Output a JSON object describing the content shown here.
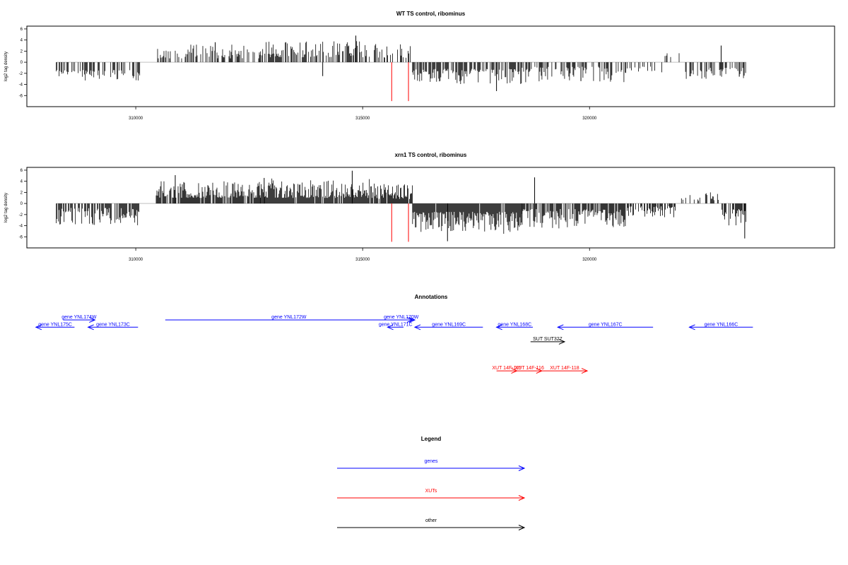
{
  "chart_data": [
    {
      "type": "bar",
      "title": "WT TS control, ribominus",
      "ylabel": "log2 tag density",
      "xlabel": "",
      "xlim": [
        307600,
        325400
      ],
      "ylim": [
        -8,
        6.5
      ],
      "xticks": [
        310000,
        315000,
        320000
      ],
      "yticks": [
        6,
        4,
        2,
        0,
        -2,
        -4,
        -6
      ],
      "seed": 11,
      "segments": [
        {
          "x0": 308250,
          "x1": 310100,
          "mode": "neg",
          "density": 0.42,
          "lo": 1.4,
          "hi": 3.3
        },
        {
          "x0": 310450,
          "x1": 312750,
          "mode": "pos",
          "density": 0.5,
          "lo": 0.7,
          "hi": 3.2
        },
        {
          "x0": 312750,
          "x1": 315300,
          "mode": "pos",
          "density": 0.62,
          "lo": 0.9,
          "hi": 3.8
        },
        {
          "x0": 315300,
          "x1": 316100,
          "mode": "pos",
          "density": 0.45,
          "lo": 0.8,
          "hi": 3.2
        },
        {
          "x0": 316100,
          "x1": 318500,
          "mode": "neg",
          "density": 0.62,
          "lo": 1.2,
          "hi": 4.0
        },
        {
          "x0": 318500,
          "x1": 320800,
          "mode": "neg",
          "density": 0.42,
          "lo": 0.8,
          "hi": 3.6
        },
        {
          "x0": 320800,
          "x1": 321600,
          "mode": "neg",
          "density": 0.25,
          "lo": 0.8,
          "hi": 2.2
        },
        {
          "x0": 321600,
          "x1": 322000,
          "mode": "pos",
          "density": 0.2,
          "lo": 0.8,
          "hi": 2.2
        },
        {
          "x0": 322100,
          "x1": 323450,
          "mode": "neg",
          "density": 0.45,
          "lo": 1.0,
          "hi": 3.0
        }
      ],
      "spikes": [
        {
          "x": 314850,
          "y": 4.8
        },
        {
          "x": 311750,
          "y": 3.6
        },
        {
          "x": 314120,
          "y": -2.5
        },
        {
          "x": 317950,
          "y": -5.2
        },
        {
          "x": 322900,
          "y": 3.0
        },
        {
          "x": 319810,
          "y": -3.4
        },
        {
          "x": 323300,
          "y": -2.6
        }
      ],
      "red_bars": [
        {
          "x": 315640,
          "y": -7.0
        },
        {
          "x": 316010,
          "y": -7.0
        }
      ]
    },
    {
      "type": "bar",
      "title": "xrn1 TS control, ribominus",
      "ylabel": "log2 tag density",
      "xlabel": "",
      "xlim": [
        307600,
        325400
      ],
      "ylim": [
        -8,
        6.5
      ],
      "xticks": [
        310000,
        315000,
        320000
      ],
      "yticks": [
        6,
        4,
        2,
        0,
        -2,
        -4,
        -6
      ],
      "seed": 29,
      "segments": [
        {
          "x0": 308250,
          "x1": 310100,
          "mode": "neg",
          "density": 0.7,
          "lo": 0.8,
          "hi": 4.0
        },
        {
          "x0": 310450,
          "x1": 312750,
          "mode": "pos",
          "density": 0.9,
          "lo": 1.0,
          "hi": 4.2
        },
        {
          "x0": 312750,
          "x1": 315300,
          "mode": "pos",
          "density": 0.92,
          "lo": 1.0,
          "hi": 4.5
        },
        {
          "x0": 315300,
          "x1": 316100,
          "mode": "pos",
          "density": 0.85,
          "lo": 0.8,
          "hi": 3.5
        },
        {
          "x0": 316100,
          "x1": 318500,
          "mode": "neg",
          "density": 0.95,
          "lo": 1.5,
          "hi": 5.5
        },
        {
          "x0": 318500,
          "x1": 320800,
          "mode": "neg",
          "density": 0.8,
          "lo": 1.0,
          "hi": 4.5
        },
        {
          "x0": 320800,
          "x1": 321900,
          "mode": "neg",
          "density": 0.6,
          "lo": 0.5,
          "hi": 2.5
        },
        {
          "x0": 321900,
          "x1": 322900,
          "mode": "pos",
          "density": 0.35,
          "lo": 0.5,
          "hi": 2.0
        },
        {
          "x0": 322900,
          "x1": 323450,
          "mode": "neg",
          "density": 0.75,
          "lo": 1.0,
          "hi": 4.0
        }
      ],
      "spikes": [
        {
          "x": 314770,
          "y": 5.9
        },
        {
          "x": 310870,
          "y": 5.1
        },
        {
          "x": 316870,
          "y": -6.8
        },
        {
          "x": 323420,
          "y": -6.3
        },
        {
          "x": 318790,
          "y": 4.7
        },
        {
          "x": 312830,
          "y": 4.6
        }
      ],
      "red_bars": [
        {
          "x": 315640,
          "y": -6.9
        },
        {
          "x": 316010,
          "y": -6.9
        }
      ]
    }
  ],
  "annotations": {
    "title": "Annotations",
    "features": [
      {
        "label": "gene YNL174W",
        "start": 308400,
        "end": 309100,
        "strand": "+",
        "color": "#0000ff",
        "row": 0
      },
      {
        "label": "gene YNL175C",
        "start": 307800,
        "end": 308650,
        "strand": "-",
        "color": "#0000ff",
        "row": 1
      },
      {
        "label": "gene YNL173C",
        "start": 308950,
        "end": 310050,
        "strand": "-",
        "color": "#0000ff",
        "row": 1
      },
      {
        "label": "gene YNL172W",
        "start": 310650,
        "end": 316100,
        "strand": "+",
        "color": "#0000ff",
        "row": 0
      },
      {
        "label": "gene YNL170W",
        "start": 315550,
        "end": 316150,
        "strand": "+",
        "color": "#0000ff",
        "row": 0
      },
      {
        "label": "gene YNL171C",
        "start": 315550,
        "end": 315900,
        "strand": "-",
        "color": "#0000ff",
        "row": 1
      },
      {
        "label": "gene YNL169C",
        "start": 316150,
        "end": 317650,
        "strand": "-",
        "color": "#0000ff",
        "row": 1
      },
      {
        "label": "gene YNL168C",
        "start": 317950,
        "end": 318750,
        "strand": "-",
        "color": "#0000ff",
        "row": 1
      },
      {
        "label": "gene YNL167C",
        "start": 319300,
        "end": 321400,
        "strand": "-",
        "color": "#0000ff",
        "row": 1
      },
      {
        "label": "gene YNL166C",
        "start": 322200,
        "end": 323600,
        "strand": "-",
        "color": "#0000ff",
        "row": 1
      },
      {
        "label": "SUT SUT327",
        "start": 318700,
        "end": 319450,
        "strand": "+",
        "color": "#000000",
        "row": 3
      },
      {
        "label": "XUT 14F-115",
        "start": 317950,
        "end": 318400,
        "strand": "+",
        "color": "#ff0000",
        "row": 7
      },
      {
        "label": "XUT 14F-116",
        "start": 318400,
        "end": 318950,
        "strand": "+",
        "color": "#ff0000",
        "row": 7
      },
      {
        "label": "XUT 14F-118",
        "start": 318950,
        "end": 319950,
        "strand": "+",
        "color": "#ff0000",
        "row": 7
      }
    ]
  },
  "legend": {
    "title": "Legend",
    "items": [
      {
        "label": "genes",
        "color": "#0000ff"
      },
      {
        "label": "XUTs",
        "color": "#ff0000"
      },
      {
        "label": "other",
        "color": "#000000"
      }
    ]
  }
}
